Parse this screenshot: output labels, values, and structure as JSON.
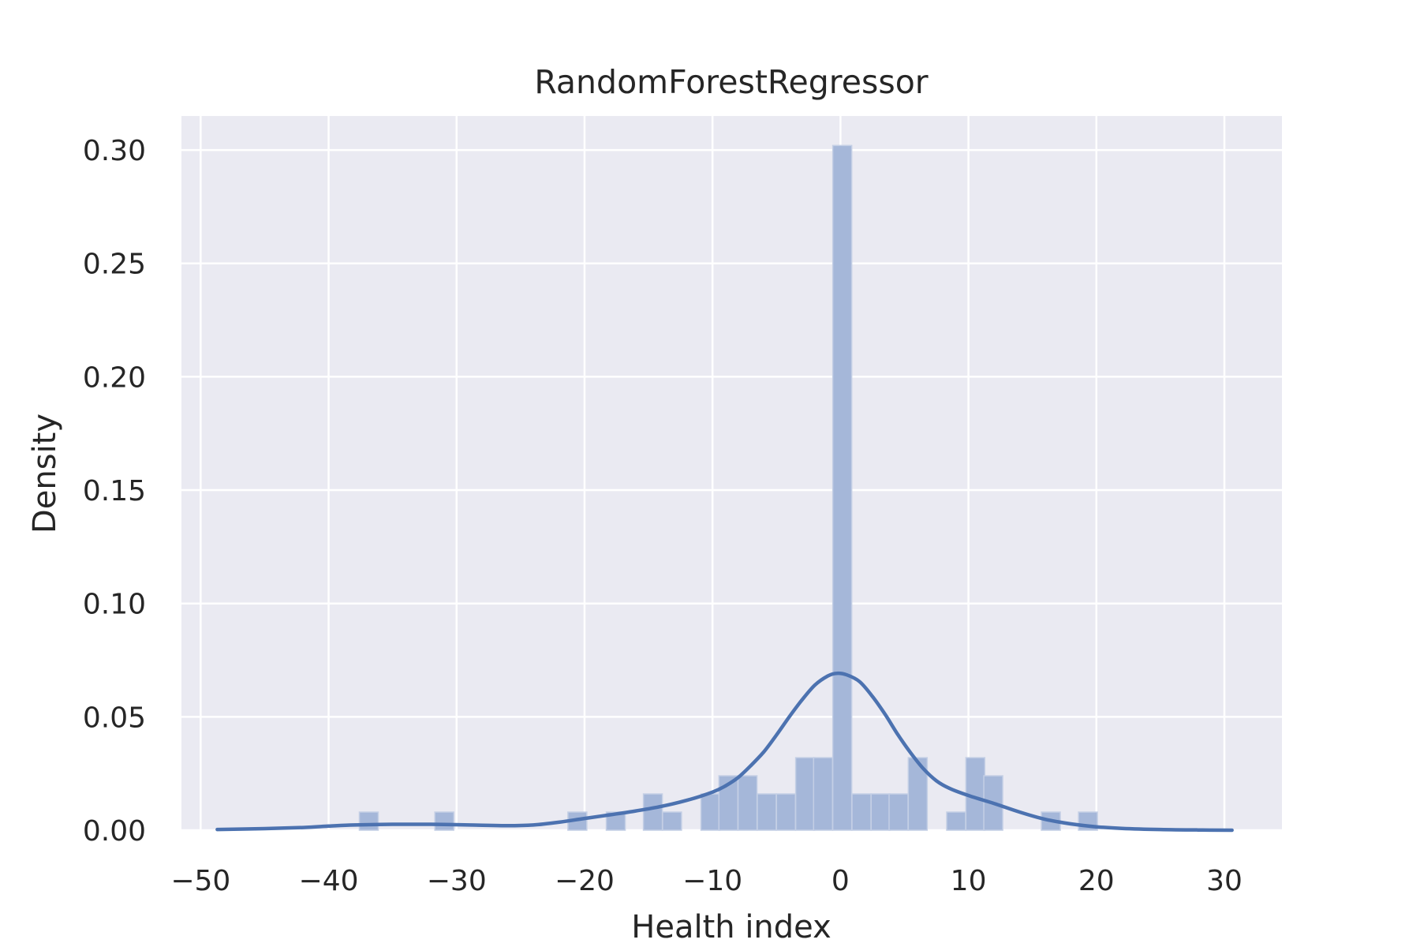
{
  "chart_data": {
    "type": "bar",
    "title": "RandomForestRegressor",
    "xlabel": "Health index",
    "ylabel": "Density",
    "xlim": [
      -51.5,
      34.5
    ],
    "ylim": [
      0,
      0.315
    ],
    "grid": true,
    "x_ticks": [
      -50,
      -40,
      -30,
      -20,
      -10,
      0,
      10,
      20,
      30
    ],
    "x_tick_labels": [
      "−50",
      "−40",
      "−30",
      "−20",
      "−10",
      "0",
      "10",
      "20",
      "30"
    ],
    "y_ticks": [
      0,
      0.05,
      0.1,
      0.15,
      0.2,
      0.25,
      0.3
    ],
    "y_tick_labels": [
      "0.00",
      "0.05",
      "0.10",
      "0.15",
      "0.20",
      "0.25",
      "0.30"
    ],
    "histogram": {
      "bin_width": 1.48,
      "bins": [
        {
          "x0": -37.6,
          "value": 0.008
        },
        {
          "x0": -31.7,
          "value": 0.008
        },
        {
          "x0": -21.3,
          "value": 0.008
        },
        {
          "x0": -18.3,
          "value": 0.008
        },
        {
          "x0": -15.4,
          "value": 0.016
        },
        {
          "x0": -13.9,
          "value": 0.008
        },
        {
          "x0": -10.9,
          "value": 0.016
        },
        {
          "x0": -9.5,
          "value": 0.024
        },
        {
          "x0": -8.0,
          "value": 0.024
        },
        {
          "x0": -6.5,
          "value": 0.016
        },
        {
          "x0": -5.0,
          "value": 0.016
        },
        {
          "x0": -3.5,
          "value": 0.032
        },
        {
          "x0": -2.1,
          "value": 0.032
        },
        {
          "x0": -0.6,
          "value": 0.302
        },
        {
          "x0": 0.9,
          "value": 0.016
        },
        {
          "x0": 2.4,
          "value": 0.016
        },
        {
          "x0": 3.8,
          "value": 0.016
        },
        {
          "x0": 5.3,
          "value": 0.032
        },
        {
          "x0": 8.3,
          "value": 0.008
        },
        {
          "x0": 9.8,
          "value": 0.032
        },
        {
          "x0": 11.2,
          "value": 0.024
        },
        {
          "x0": 15.7,
          "value": 0.008
        },
        {
          "x0": 18.6,
          "value": 0.008
        }
      ]
    },
    "kde": {
      "x": [
        -48.7,
        -45,
        -42,
        -40,
        -38,
        -35,
        -32,
        -29,
        -26,
        -24,
        -22,
        -20,
        -18,
        -16,
        -14,
        -12,
        -10,
        -9,
        -8,
        -7,
        -6,
        -5,
        -4,
        -3,
        -2,
        -1,
        -0.3,
        0.5,
        1.5,
        2.5,
        3.5,
        4.5,
        5.5,
        6.5,
        7.5,
        8.5,
        10,
        12,
        14,
        16,
        18,
        20,
        22,
        25,
        28,
        30.6
      ],
      "y": [
        0.0003,
        0.0007,
        0.0012,
        0.0018,
        0.0023,
        0.0026,
        0.0026,
        0.0023,
        0.002,
        0.0023,
        0.0035,
        0.0052,
        0.0068,
        0.0085,
        0.0105,
        0.0132,
        0.0168,
        0.0195,
        0.0232,
        0.0285,
        0.0345,
        0.042,
        0.05,
        0.0575,
        0.064,
        0.068,
        0.0692,
        0.0685,
        0.0655,
        0.059,
        0.051,
        0.042,
        0.034,
        0.027,
        0.0218,
        0.0185,
        0.0153,
        0.0118,
        0.008,
        0.0048,
        0.0028,
        0.0015,
        0.0008,
        0.0003,
        0.0001,
        0.0
      ]
    },
    "colors": {
      "plot_background": "#eaeaf2",
      "grid": "#ffffff",
      "bar_fill": "#a5b7d9",
      "bar_edge": "#c4cfe5",
      "kde_line": "#4c72b0",
      "text": "#262626"
    }
  }
}
